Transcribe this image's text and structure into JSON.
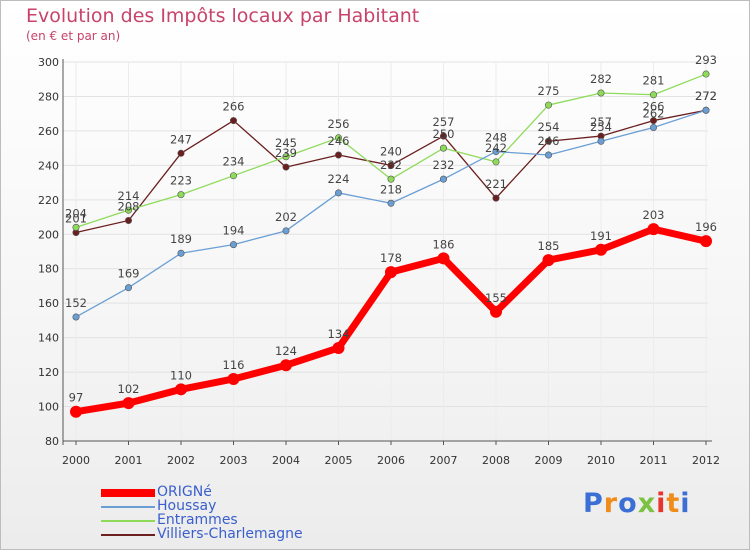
{
  "chart_data": {
    "type": "line",
    "title": "Evolution des Impôts locaux par Habitant",
    "subtitle": "(en € et par an)",
    "x": [
      "2000",
      "2001",
      "2002",
      "2003",
      "2004",
      "2005",
      "2006",
      "2007",
      "2008",
      "2009",
      "2010",
      "2011",
      "2012"
    ],
    "ylim": [
      80,
      300
    ],
    "yticks": [
      "80",
      "100",
      "120",
      "140",
      "160",
      "180",
      "200",
      "220",
      "240",
      "260",
      "280",
      "300"
    ],
    "grid": true,
    "series": [
      {
        "name": "ORIGNé",
        "color": "#ff0000",
        "values": [
          97,
          102,
          110,
          116,
          124,
          134,
          178,
          186,
          155,
          185,
          191,
          203,
          196
        ],
        "labels": [
          "97",
          "102",
          "110",
          "116",
          "124",
          "134",
          "178",
          "186",
          "155",
          "185",
          "191",
          "203",
          "196"
        ]
      },
      {
        "name": "Houssay",
        "color": "#6b9fd4",
        "values": [
          152,
          169,
          189,
          194,
          202,
          224,
          218,
          232,
          248,
          246,
          254,
          262,
          272
        ],
        "labels": [
          "152",
          "169",
          "189",
          "194",
          "202",
          "224",
          "218",
          "232",
          "248",
          "246",
          "254",
          "262",
          "272"
        ]
      },
      {
        "name": "Entrammes",
        "color": "#8edb5a",
        "values": [
          204,
          214,
          223,
          234,
          245,
          256,
          232,
          250,
          242,
          275,
          282,
          281,
          293
        ],
        "labels": [
          "204",
          "214",
          "223",
          "234",
          "245",
          "256",
          "232",
          "250",
          "242",
          "275",
          "282",
          "281",
          "293"
        ]
      },
      {
        "name": "Villiers-Charlemagne",
        "color": "#6b1f1f",
        "values": [
          201,
          208,
          247,
          266,
          239,
          246,
          240,
          257,
          221,
          254,
          257,
          266,
          272
        ],
        "labels": [
          "201",
          "208",
          "247",
          "266",
          "239",
          "246",
          "240",
          "257",
          "221",
          "254",
          "257",
          "266",
          "272"
        ]
      }
    ]
  },
  "brand": {
    "letters": [
      "P",
      "r",
      "o",
      "x",
      "i",
      "t",
      "i"
    ],
    "colors": [
      "#3b6fd6",
      "#f08c1a",
      "#3b6fd6",
      "#7cc242",
      "#e8352b",
      "#f08c1a",
      "#3b6fd6"
    ]
  }
}
